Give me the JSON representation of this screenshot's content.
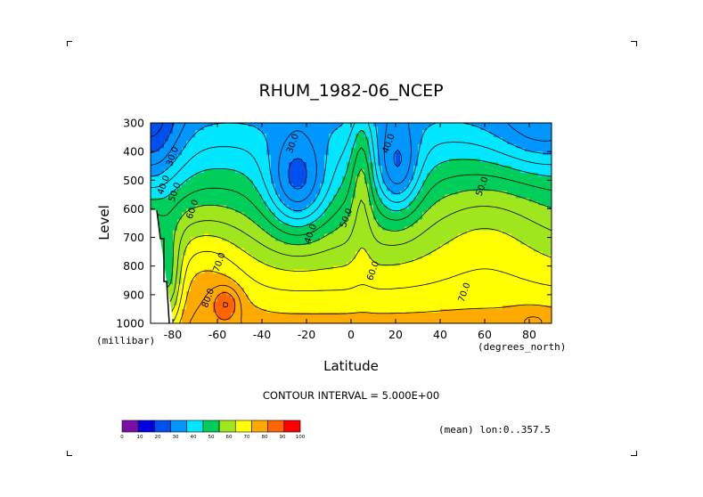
{
  "chart_data": {
    "type": "heatmap",
    "title": "RHUM_1982-06_NCEP",
    "xlabel": "Latitude",
    "ylabel": "Level",
    "x_units": "(degrees_north)",
    "y_units": "(millibar)",
    "xlim": [
      -90,
      90
    ],
    "ylim": [
      1000,
      300
    ],
    "x_ticks": [
      -80,
      -60,
      -40,
      -20,
      0,
      20,
      40,
      60,
      80
    ],
    "x_tick_labels": [
      "-80",
      "-60",
      "-40",
      "-20",
      "0",
      "20",
      "40",
      "60",
      "80"
    ],
    "y_ticks": [
      300,
      400,
      500,
      600,
      700,
      800,
      900,
      1000
    ],
    "y_tick_labels": [
      "300",
      "400",
      "500",
      "600",
      "700",
      "800",
      "900",
      "1000"
    ],
    "contour_interval_label": "CONTOUR INTERVAL = 5.000E+00",
    "note": "(mean) lon:0..357.5",
    "colorbar": {
      "levels": [
        0,
        10,
        20,
        30,
        40,
        50,
        60,
        70,
        80,
        90,
        100
      ],
      "level_labels": [
        "0",
        "10",
        "20",
        "30",
        "40",
        "50",
        "60",
        "70",
        "80",
        "90",
        "100"
      ],
      "colors": [
        "#7a0fa8",
        "#0000e0",
        "#0050f0",
        "#0096ff",
        "#00e6ff",
        "#00ce5a",
        "#a0e61e",
        "#ffff00",
        "#ffaa00",
        "#ff6400",
        "#ff0000"
      ]
    },
    "contour_labels": [
      {
        "text": "30.0",
        "lat": -79,
        "lev": 420
      },
      {
        "text": "40.0",
        "lat": -83,
        "lev": 520
      },
      {
        "text": "50.0",
        "lat": -78,
        "lev": 545
      },
      {
        "text": "60.0",
        "lat": -70,
        "lev": 605
      },
      {
        "text": "70.0",
        "lat": -58,
        "lev": 790
      },
      {
        "text": "80.0",
        "lat": -63,
        "lev": 915
      },
      {
        "text": "30.0",
        "lat": -25,
        "lev": 375
      },
      {
        "text": "40.0",
        "lat": -17,
        "lev": 690
      },
      {
        "text": "50.0",
        "lat": -1,
        "lev": 635
      },
      {
        "text": "40.0",
        "lat": 18,
        "lev": 375
      },
      {
        "text": "60.0",
        "lat": 11,
        "lev": 820
      },
      {
        "text": "50.0",
        "lat": 60,
        "lev": 525
      },
      {
        "text": "70.0",
        "lat": 52,
        "lev": 895
      }
    ]
  }
}
